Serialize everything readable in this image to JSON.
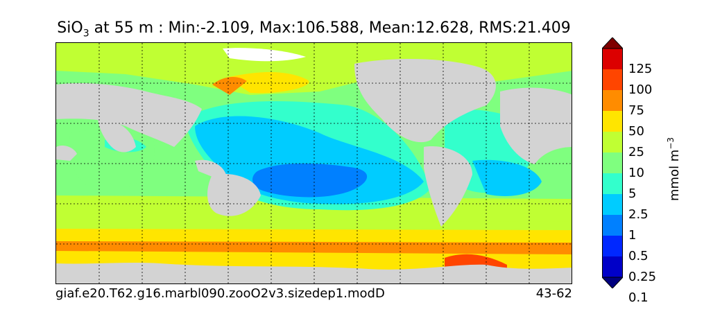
{
  "title": {
    "variable": "SiO",
    "subscript": "3",
    "rest": " at 55 m : Min:-2.109, Max:106.588, Mean:12.628, RMS:21.409"
  },
  "footer": {
    "case_name": "giaf.e20.T62.g16.marbl090.zooO2v3.sizedep1.modD",
    "years": "43-62"
  },
  "colorbar": {
    "units_text": "mmol m",
    "units_exponent": "−3",
    "labels": [
      "125",
      "100",
      "75",
      "50",
      "25",
      "10",
      "5",
      "2.5",
      "1",
      "0.5",
      "0.25",
      "0.1"
    ],
    "colors": [
      "#00007f",
      "#0000c8",
      "#0028ff",
      "#0080ff",
      "#00ccff",
      "#33ffcc",
      "#7fff7f",
      "#c0ff33",
      "#ffe500",
      "#ff8c00",
      "#ff4500",
      "#dc0000",
      "#7f0000"
    ]
  },
  "map": {
    "land_color": "#d3d3d3",
    "ice_color": "#ffffff",
    "gridlines": "dotted"
  }
}
